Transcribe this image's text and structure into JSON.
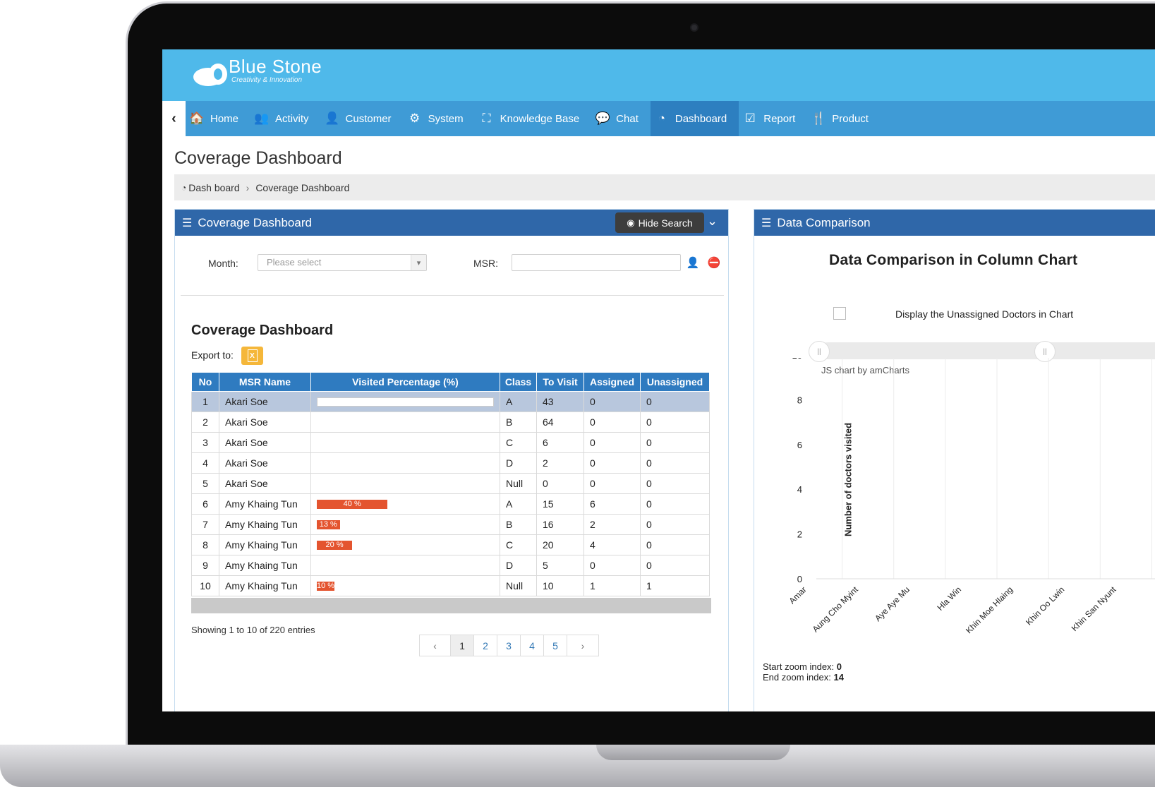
{
  "brand": {
    "name": "Blue Stone",
    "tagline": "Creativity & Innovation"
  },
  "nav": {
    "toggle_icon": "chevron-left-icon",
    "items": [
      {
        "label": "Home",
        "icon": "home-icon",
        "glyph": "🏠",
        "active": false
      },
      {
        "label": "Activity",
        "icon": "users-icon",
        "glyph": "👥",
        "active": false
      },
      {
        "label": "Customer",
        "icon": "user-icon",
        "glyph": "👤",
        "active": false
      },
      {
        "label": "System",
        "icon": "gear-icon",
        "glyph": "⚙",
        "active": false
      },
      {
        "label": "Knowledge Base",
        "icon": "sitemap-icon",
        "glyph": "⛶",
        "active": false
      },
      {
        "label": "Chat",
        "icon": "chat-icon",
        "glyph": "💬",
        "active": false
      },
      {
        "label": "Dashboard",
        "icon": "dashboard-icon",
        "glyph": "◔",
        "active": true
      },
      {
        "label": "Report",
        "icon": "check-square-icon",
        "glyph": "☑",
        "active": false
      },
      {
        "label": "Product",
        "icon": "cutlery-icon",
        "glyph": "🍴",
        "active": false
      }
    ]
  },
  "page": {
    "title": "Coverage Dashboard"
  },
  "breadcrumb": {
    "root": "Dash board",
    "current": "Coverage Dashboard"
  },
  "left_panel": {
    "title": "Coverage Dashboard",
    "hide_search_label": "Hide Search",
    "month_label": "Month:",
    "month_placeholder": "Please select",
    "msr_label": "MSR:",
    "msr_value": "",
    "section_title": "Coverage Dashboard",
    "export_label": "Export to:",
    "columns": [
      "No",
      "MSR Name",
      "Visited Percentage (%)",
      "Class",
      "To Visit",
      "Assigned",
      "Unassigned"
    ],
    "rows": [
      {
        "no": "1",
        "name": "Akari Soe",
        "pct": 0,
        "pct_label": "",
        "cls": "A",
        "to_visit": "43",
        "assigned": "0",
        "unassigned": "0",
        "selected": true
      },
      {
        "no": "2",
        "name": "Akari Soe",
        "pct": null,
        "pct_label": "",
        "cls": "B",
        "to_visit": "64",
        "assigned": "0",
        "unassigned": "0",
        "selected": false
      },
      {
        "no": "3",
        "name": "Akari Soe",
        "pct": null,
        "pct_label": "",
        "cls": "C",
        "to_visit": "6",
        "assigned": "0",
        "unassigned": "0",
        "selected": false
      },
      {
        "no": "4",
        "name": "Akari Soe",
        "pct": null,
        "pct_label": "",
        "cls": "D",
        "to_visit": "2",
        "assigned": "0",
        "unassigned": "0",
        "selected": false
      },
      {
        "no": "5",
        "name": "Akari Soe",
        "pct": null,
        "pct_label": "",
        "cls": "Null",
        "to_visit": "0",
        "assigned": "0",
        "unassigned": "0",
        "selected": false
      },
      {
        "no": "6",
        "name": "Amy Khaing Tun",
        "pct": 40,
        "pct_label": "40 %",
        "cls": "A",
        "to_visit": "15",
        "assigned": "6",
        "unassigned": "0",
        "selected": false
      },
      {
        "no": "7",
        "name": "Amy Khaing Tun",
        "pct": 13,
        "pct_label": "13 %",
        "cls": "B",
        "to_visit": "16",
        "assigned": "2",
        "unassigned": "0",
        "selected": false
      },
      {
        "no": "8",
        "name": "Amy Khaing Tun",
        "pct": 20,
        "pct_label": "20 %",
        "cls": "C",
        "to_visit": "20",
        "assigned": "4",
        "unassigned": "0",
        "selected": false
      },
      {
        "no": "9",
        "name": "Amy Khaing Tun",
        "pct": null,
        "pct_label": "",
        "cls": "D",
        "to_visit": "5",
        "assigned": "0",
        "unassigned": "0",
        "selected": false
      },
      {
        "no": "10",
        "name": "Amy Khaing Tun",
        "pct": 10,
        "pct_label": "10 %",
        "cls": "Null",
        "to_visit": "10",
        "assigned": "1",
        "unassigned": "1",
        "selected": false
      }
    ],
    "showing": "Showing 1 to 10 of 220 entries",
    "pager": [
      "‹",
      "1",
      "2",
      "3",
      "4",
      "5",
      "›"
    ],
    "current_page": "1"
  },
  "right_panel": {
    "title": "Data Comparison",
    "chart_title": "Data Comparison in Column Chart",
    "checkbox_label": "Display the Unassigned Doctors in Chart",
    "checkbox_checked": false,
    "credit": "JS chart by amCharts",
    "zoom_start_label": "Start zoom index:",
    "zoom_start_value": "0",
    "zoom_end_label": "End zoom index:",
    "zoom_end_value": "14"
  },
  "chart_data": {
    "type": "bar",
    "title": "Data Comparison in Column Chart",
    "ylabel": "Number of doctors visited",
    "xlabel": "",
    "ylim": [
      0,
      10
    ],
    "yticks": [
      0,
      2,
      4,
      6,
      8,
      10
    ],
    "categories": [
      "Amar",
      "Aung Cho Myint",
      "Aye Aye Mu",
      "Hla Win",
      "Khin Moe Hlaing",
      "Khin Oo Lwin",
      "Khin San Nyunt"
    ],
    "values": [
      0,
      0,
      0,
      0,
      0,
      0,
      0
    ],
    "grid": true
  },
  "colors": {
    "header": "#4fb9ea",
    "nav": "#3f9bd6",
    "nav_active": "#2d7fc0",
    "panel_head": "#2f67a9",
    "table_head": "#2f7bc0",
    "bar": "#e4542f"
  }
}
